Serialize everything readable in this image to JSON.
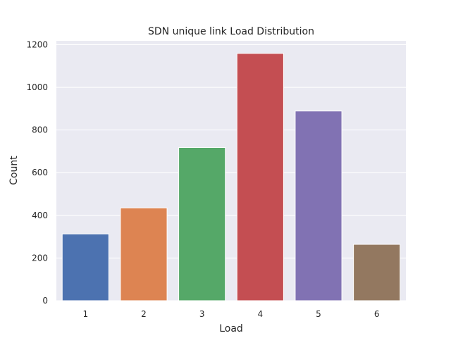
{
  "chart_data": {
    "type": "bar",
    "title": "SDN unique link Load Distribution",
    "xlabel": "Load",
    "ylabel": "Count",
    "categories": [
      "1",
      "2",
      "3",
      "4",
      "5",
      "6"
    ],
    "values": [
      313,
      435,
      718,
      1159,
      889,
      264
    ],
    "ylim": [
      0,
      1218
    ],
    "yticks": [
      "0",
      "200",
      "400",
      "600",
      "800",
      "1000",
      "1200"
    ],
    "grid": true,
    "legend": "none"
  },
  "colors": {
    "background": "#eaeaf2",
    "grid": "#ffffff",
    "bars": [
      "#4c72b0",
      "#dd8452",
      "#55a868",
      "#c44e52",
      "#8172b3",
      "#937860"
    ]
  }
}
